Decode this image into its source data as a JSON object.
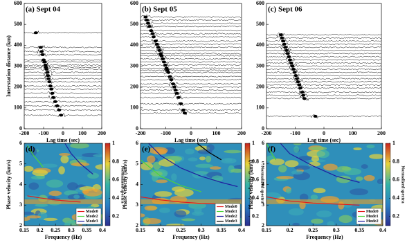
{
  "chart_data": [
    {
      "type": "record_section",
      "title": "(a) Sept 04",
      "xlabel": "Lag time (sec)",
      "ylabel": "Interstation distance (km)",
      "xlim": [
        -200,
        200
      ],
      "xticks": [
        -200,
        -100,
        0,
        100,
        200
      ],
      "ylim": [
        0,
        600
      ],
      "yticks": [
        0,
        100,
        200,
        300,
        400,
        500,
        600
      ],
      "distances": [
        460,
        390,
        370,
        355,
        330,
        320,
        305,
        295,
        285,
        270,
        255,
        240,
        225,
        205,
        190,
        170,
        150,
        130,
        110,
        90,
        65
      ],
      "arrival_lags": [
        -140,
        -115,
        -110,
        -105,
        -100,
        -95,
        -90,
        -88,
        -85,
        -80,
        -78,
        -75,
        -70,
        -65,
        -60,
        -55,
        -50,
        -40,
        -30,
        -20,
        -10
      ]
    },
    {
      "type": "record_section",
      "title": "(b) Sept 05",
      "xlabel": "Lag time (sec)",
      "xlim": [
        -200,
        200
      ],
      "xticks": [
        -200,
        -100,
        0,
        100,
        200
      ],
      "ylim": [
        0,
        600
      ],
      "yticks": [
        0,
        100,
        200,
        300,
        400,
        500,
        600
      ],
      "distances": [
        535,
        520,
        505,
        490,
        470,
        455,
        440,
        420,
        405,
        390,
        375,
        360,
        350,
        335,
        320,
        305,
        290,
        280,
        270,
        250,
        235,
        215,
        200,
        185,
        170,
        150,
        120,
        90,
        75
      ],
      "arrival_lags": [
        -180,
        -175,
        -170,
        -165,
        -158,
        -152,
        -148,
        -140,
        -135,
        -130,
        -125,
        -120,
        -117,
        -112,
        -107,
        -102,
        -97,
        -94,
        -90,
        -83,
        -78,
        -71,
        -66,
        -61,
        -56,
        -49,
        -40,
        -30,
        -25
      ]
    },
    {
      "type": "record_section",
      "title": "(c) Sept 06",
      "xlabel": "Lag time (sec)",
      "xlim": [
        -200,
        200
      ],
      "xticks": [
        -200,
        -100,
        0,
        100,
        200
      ],
      "ylim": [
        0,
        600
      ],
      "yticks": [
        0,
        100,
        200,
        300,
        400,
        500,
        600
      ],
      "distances": [
        450,
        435,
        420,
        405,
        390,
        375,
        360,
        345,
        330,
        315,
        300,
        285,
        270,
        255,
        240,
        225,
        210,
        195,
        175,
        160,
        145,
        60
      ],
      "arrival_lags": [
        -150,
        -146,
        -142,
        -138,
        -134,
        -130,
        -126,
        -122,
        -118,
        -114,
        -110,
        -106,
        -102,
        -98,
        -94,
        -90,
        -86,
        -82,
        -76,
        -72,
        -68,
        -30
      ]
    },
    {
      "type": "dispersion",
      "title": "(d)",
      "xlabel": "Frequency (Hz)",
      "ylabel": "Phase velocity (km/s)",
      "colorbar_label": "Normalized spectra",
      "xlim": [
        0.15,
        0.4
      ],
      "xticks": [
        0.15,
        0.2,
        0.25,
        0.3,
        0.35,
        0.4
      ],
      "ylim": [
        2,
        6
      ],
      "yticks": [
        2,
        3,
        4,
        5,
        6
      ],
      "clim": [
        0.1,
        1
      ],
      "cticks": [
        0.2,
        0.4,
        0.6,
        0.8,
        1
      ],
      "series": [
        {
          "name": "Mode0",
          "color": "#e41a1c",
          "x": [
            0.16,
            0.2,
            0.25,
            0.3,
            0.33
          ],
          "values": [
            3.45,
            3.35,
            3.25,
            3.18,
            3.15
          ]
        },
        {
          "name": "Mode2",
          "color": "#4cd43c",
          "x": [
            0.16,
            0.18,
            0.2,
            0.21
          ],
          "values": [
            5.9,
            5.4,
            5.05,
            4.85
          ]
        },
        {
          "name": "Mode3",
          "color": "#1f1fa0",
          "x": [
            0.28,
            0.3,
            0.33,
            0.37
          ],
          "values": [
            6,
            5.5,
            5,
            4.5
          ]
        }
      ]
    },
    {
      "type": "dispersion",
      "title": "(e)",
      "xlabel": "Frequency (Hz)",
      "ylabel": "Phase velocity (km/s)",
      "colorbar_label": "Normalized spectra",
      "xlim": [
        0.15,
        0.4
      ],
      "xticks": [
        0.15,
        0.2,
        0.25,
        0.3,
        0.35,
        0.4
      ],
      "ylim": [
        2,
        6
      ],
      "yticks": [
        2,
        3,
        4,
        5,
        6
      ],
      "clim": [
        0.1,
        1
      ],
      "cticks": [
        0.2,
        0.4,
        0.6,
        0.8,
        1
      ],
      "series": [
        {
          "name": "Mode0",
          "color": "#e41a1c",
          "x": [
            0.15,
            0.2,
            0.25,
            0.3,
            0.35
          ],
          "values": [
            3.4,
            3.25,
            3.15,
            3.08,
            3.05
          ]
        },
        {
          "name": "Mode1",
          "color": "#4cd43c",
          "x": [
            0.15,
            0.2,
            0.25,
            0.3
          ],
          "values": [
            5.2,
            4.4,
            3.95,
            3.65
          ]
        },
        {
          "name": "Mode2",
          "color": "#1f1fa0",
          "x": [
            0.17,
            0.2,
            0.25,
            0.3,
            0.35,
            0.39
          ],
          "values": [
            6,
            5.4,
            4.8,
            4.4,
            4.1,
            3.9
          ]
        },
        {
          "name": "Mode3",
          "color": "#000000",
          "x": [
            0.29,
            0.32,
            0.35
          ],
          "values": [
            6,
            5.55,
            5.2
          ]
        }
      ]
    },
    {
      "type": "dispersion",
      "title": "(f)",
      "xlabel": "Frequency (Hz)",
      "ylabel": "Phase velocity (km/s)",
      "colorbar_label": "Normalized spectra",
      "xlim": [
        0.15,
        0.4
      ],
      "xticks": [
        0.15,
        0.2,
        0.25,
        0.3,
        0.35,
        0.4
      ],
      "ylim": [
        2,
        6
      ],
      "yticks": [
        2,
        3,
        4,
        5,
        6
      ],
      "clim": [
        0.1,
        1
      ],
      "cticks": [
        0.2,
        0.4,
        0.6,
        0.8,
        1
      ],
      "series": [
        {
          "name": "Mode0",
          "color": "#e41a1c",
          "x": [
            0.15,
            0.2,
            0.25,
            0.3,
            0.35
          ],
          "values": [
            3.4,
            3.2,
            3.1,
            3.05,
            3.0
          ]
        },
        {
          "name": "Mode1",
          "color": "#4cd43c",
          "x": [
            0.15,
            0.16,
            0.17
          ],
          "values": [
            6,
            5.55,
            5.2
          ]
        },
        {
          "name": "Mode2",
          "color": "#1f1fa0",
          "x": [
            0.18,
            0.2,
            0.25,
            0.3,
            0.35
          ],
          "values": [
            6,
            5.5,
            4.9,
            4.4,
            4.1
          ]
        }
      ]
    }
  ]
}
